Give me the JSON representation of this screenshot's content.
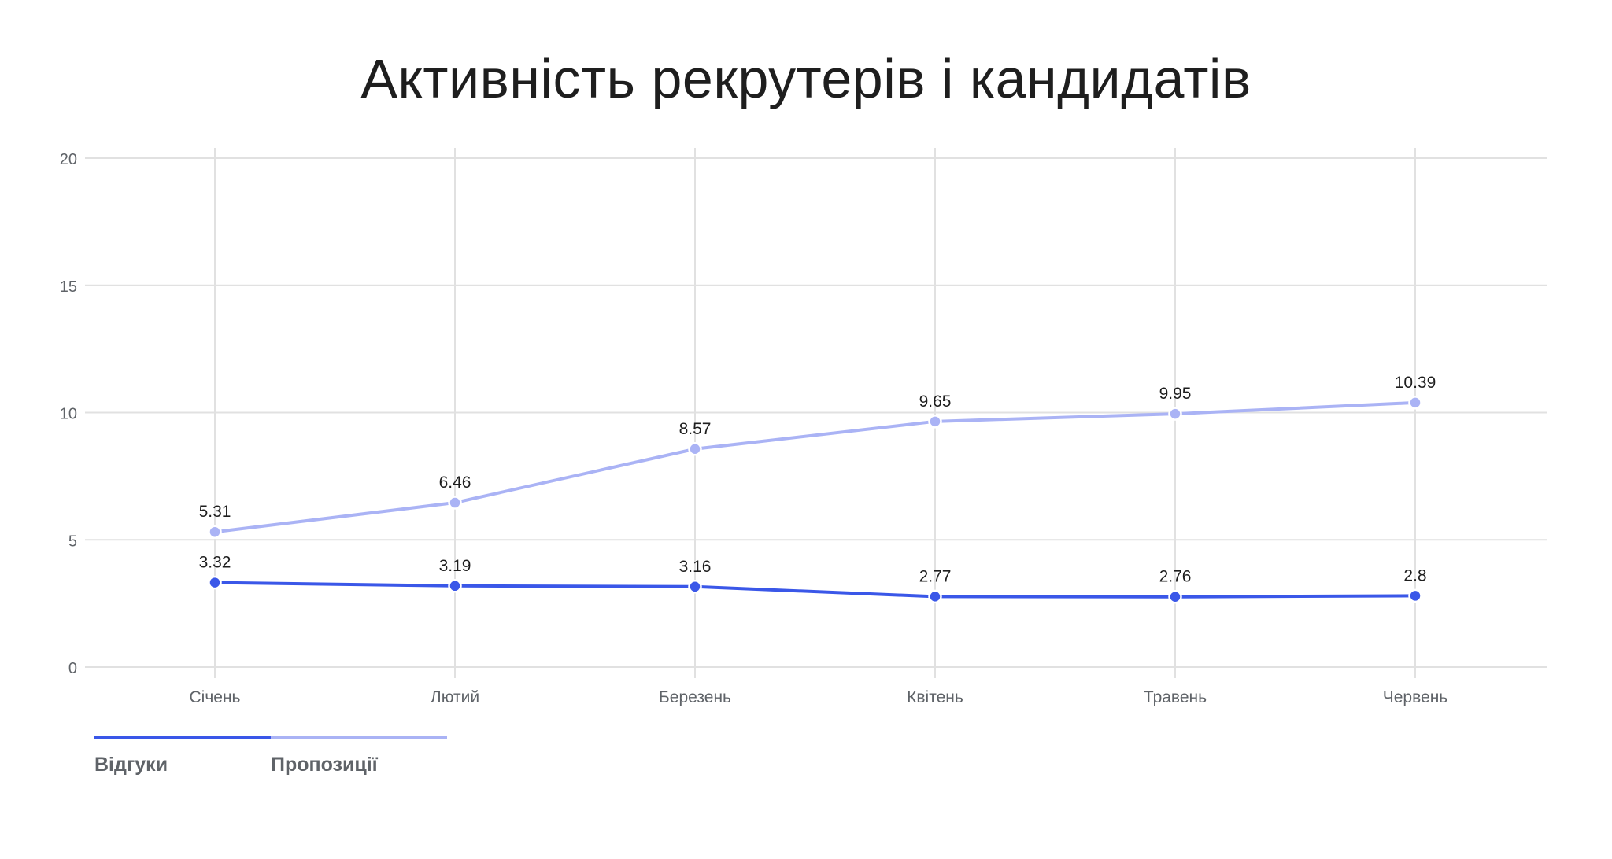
{
  "chart_data": {
    "type": "line",
    "title": "Активність рекрутерів і кандидатів",
    "categories": [
      "Січень",
      "Лютий",
      "Березень",
      "Квітень",
      "Травень",
      "Червень"
    ],
    "series": [
      {
        "name": "Відгуки",
        "values": [
          3.32,
          3.19,
          3.16,
          2.77,
          2.76,
          2.8
        ],
        "color": "#3a57e8"
      },
      {
        "name": "Пропозиції",
        "values": [
          5.31,
          6.46,
          8.57,
          9.65,
          9.95,
          10.39
        ],
        "color": "#aab3f5"
      }
    ],
    "ylim": [
      0,
      20
    ],
    "yticks": [
      "0",
      "5",
      "10",
      "15",
      "20"
    ],
    "data_labels": {
      "Відгуки": [
        "3.32",
        "3.19",
        "3.16",
        "2.77",
        "2.76",
        "2.8"
      ],
      "Пропозиції": [
        "5.31",
        "6.46",
        "8.57",
        "9.65",
        "9.95",
        "10.39"
      ]
    },
    "grid": true,
    "legend_position": "bottom-left"
  }
}
